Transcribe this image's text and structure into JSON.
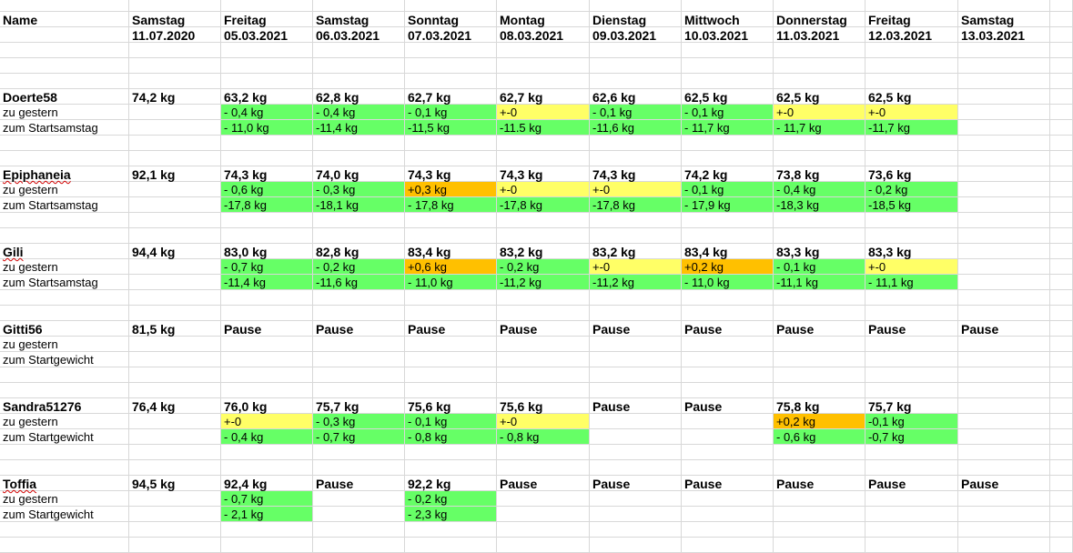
{
  "header": {
    "name_label": "Name",
    "days": [
      {
        "weekday": "Samstag",
        "date": "11.07.2020"
      },
      {
        "weekday": "Freitag",
        "date": "05.03.2021"
      },
      {
        "weekday": "Samstag",
        "date": "06.03.2021"
      },
      {
        "weekday": "Sonntag",
        "date": "07.03.2021"
      },
      {
        "weekday": "Montag",
        "date": "08.03.2021"
      },
      {
        "weekday": "Dienstag",
        "date": "09.03.2021"
      },
      {
        "weekday": "Mittwoch",
        "date": "10.03.2021"
      },
      {
        "weekday": "Donnerstag",
        "date": "11.03.2021"
      },
      {
        "weekday": "Freitag",
        "date": "12.03.2021"
      },
      {
        "weekday": "Samstag",
        "date": "13.03.2021"
      }
    ]
  },
  "colors": {
    "green": "#66ff66",
    "yellow": "#ffff66",
    "orange": "#ffc000",
    "gridline": "#d8d8d8"
  },
  "persons": [
    {
      "name": "Doerte58",
      "name_style": "plain",
      "weights": [
        "74,2 kg",
        "63,2 kg",
        "62,8 kg",
        "62,7 kg",
        "62,7 kg",
        "62,6 kg",
        "62,5 kg",
        "62,5 kg",
        "62,5 kg",
        ""
      ],
      "rows": [
        {
          "label": "zu gestern",
          "values": [
            "",
            "- 0,4 kg",
            "- 0,4 kg",
            "- 0,1 kg",
            "+-0",
            "- 0,1 kg",
            "- 0,1 kg",
            "+-0",
            "+-0",
            ""
          ],
          "colors": [
            "",
            "green",
            "green",
            "green",
            "yellow",
            "green",
            "green",
            "yellow",
            "yellow",
            ""
          ]
        },
        {
          "label": "zum Startsamstag",
          "values": [
            "",
            "- 11,0 kg",
            "-11,4 kg",
            "-11,5 kg",
            "-11.5 kg",
            "-11,6 kg",
            "- 11,7 kg",
            "- 11,7 kg",
            "-11,7 kg",
            ""
          ],
          "colors": [
            "",
            "green",
            "green",
            "green",
            "green",
            "green",
            "green",
            "green",
            "green",
            ""
          ]
        }
      ]
    },
    {
      "name": "Epiphaneia",
      "name_style": "squiggle",
      "weights": [
        "92,1 kg",
        "74,3 kg",
        "74,0 kg",
        "74,3 kg",
        "74,3 kg",
        "74,3 kg",
        "74,2 kg",
        "73,8 kg",
        "73,6 kg",
        ""
      ],
      "rows": [
        {
          "label": "zu gestern",
          "values": [
            "",
            "- 0,6 kg",
            "- 0,3 kg",
            "+0,3 kg",
            "+-0",
            "+-0",
            "- 0,1 kg",
            "- 0,4 kg",
            "- 0,2 kg",
            ""
          ],
          "colors": [
            "",
            "green",
            "green",
            "orange",
            "yellow",
            "yellow",
            "green",
            "green",
            "green",
            ""
          ]
        },
        {
          "label": "zum Startsamstag",
          "values": [
            "",
            "-17,8 kg",
            "-18,1 kg",
            "- 17,8 kg",
            "-17,8 kg",
            "-17,8 kg",
            "- 17,9 kg",
            "-18,3 kg",
            "-18,5 kg",
            ""
          ],
          "colors": [
            "",
            "green",
            "green",
            "green",
            "green",
            "green",
            "green",
            "green",
            "green",
            ""
          ]
        }
      ]
    },
    {
      "name": "Gili",
      "name_style": "squiggle",
      "weights": [
        "94,4 kg",
        "83,0 kg",
        "82,8 kg",
        "83,4 kg",
        "83,2 kg",
        "83,2 kg",
        "83,4 kg",
        "83,3 kg",
        "83,3 kg",
        ""
      ],
      "rows": [
        {
          "label": "zu gestern",
          "values": [
            "",
            "- 0,7 kg",
            "- 0,2 kg",
            "+0,6 kg",
            "- 0,2 kg",
            "+-0",
            "+0,2 kg",
            "- 0,1 kg",
            "+-0",
            ""
          ],
          "colors": [
            "",
            "green",
            "green",
            "orange",
            "green",
            "yellow",
            "orange",
            "green",
            "yellow",
            ""
          ]
        },
        {
          "label": "zum Startsamstag",
          "values": [
            "",
            "-11,4 kg",
            "-11,6 kg",
            "- 11,0 kg",
            "-11,2 kg",
            "-11,2 kg",
            "- 11,0 kg",
            "-11,1 kg",
            "- 11,1 kg",
            ""
          ],
          "colors": [
            "",
            "green",
            "green",
            "green",
            "green",
            "green",
            "green",
            "green",
            "green",
            ""
          ]
        }
      ]
    },
    {
      "name": "Gitti56",
      "name_style": "plain",
      "weights": [
        "81,5 kg",
        "Pause",
        "Pause",
        "Pause",
        "Pause",
        "Pause",
        "Pause",
        "Pause",
        "Pause",
        "Pause"
      ],
      "rows": [
        {
          "label": "zu gestern",
          "values": [
            "",
            "",
            "",
            "",
            "",
            "",
            "",
            "",
            "",
            ""
          ],
          "colors": [
            "",
            "",
            "",
            "",
            "",
            "",
            "",
            "",
            "",
            ""
          ]
        },
        {
          "label": "zum Startgewicht",
          "values": [
            "",
            "",
            "",
            "",
            "",
            "",
            "",
            "",
            "",
            ""
          ],
          "colors": [
            "",
            "",
            "",
            "",
            "",
            "",
            "",
            "",
            "",
            ""
          ]
        }
      ]
    },
    {
      "name": "Sandra51276",
      "name_style": "plain",
      "weights": [
        "76,4 kg",
        "76,0 kg",
        "75,7 kg",
        "75,6 kg",
        "75,6 kg",
        "Pause",
        "Pause",
        "75,8 kg",
        "75,7 kg",
        ""
      ],
      "rows": [
        {
          "label": "zu gestern",
          "values": [
            "",
            "+-0",
            "- 0,3 kg",
            "- 0,1 kg",
            "+-0",
            "",
            "",
            "+0,2 kg",
            "-0,1 kg",
            ""
          ],
          "colors": [
            "",
            "yellow",
            "green",
            "green",
            "yellow",
            "",
            "",
            "orange",
            "green",
            ""
          ]
        },
        {
          "label": "zum Startgewicht",
          "values": [
            "",
            "- 0,4 kg",
            "- 0,7 kg",
            "- 0,8 kg",
            "- 0,8 kg",
            "",
            "",
            "- 0,6 kg",
            "-0,7 kg",
            ""
          ],
          "colors": [
            "",
            "green",
            "green",
            "green",
            "green",
            "",
            "",
            "green",
            "green",
            ""
          ]
        }
      ]
    },
    {
      "name": "Toffia",
      "name_style": "squiggle",
      "weights": [
        "94,5 kg",
        "92,4 kg",
        "Pause",
        "92,2 kg",
        "Pause",
        "Pause",
        "Pause",
        "Pause",
        "Pause",
        "Pause"
      ],
      "rows": [
        {
          "label": "zu gestern",
          "values": [
            "",
            "- 0,7 kg",
            "",
            "- 0,2 kg",
            "",
            "",
            "",
            "",
            "",
            ""
          ],
          "colors": [
            "",
            "green",
            "",
            "green",
            "",
            "",
            "",
            "",
            "",
            ""
          ]
        },
        {
          "label": "zum Startgewicht",
          "values": [
            "",
            "- 2,1 kg",
            "",
            "- 2,3 kg",
            "",
            "",
            "",
            "",
            "",
            ""
          ],
          "colors": [
            "",
            "green",
            "",
            "green",
            "",
            "",
            "",
            "",
            "",
            ""
          ]
        }
      ]
    }
  ]
}
